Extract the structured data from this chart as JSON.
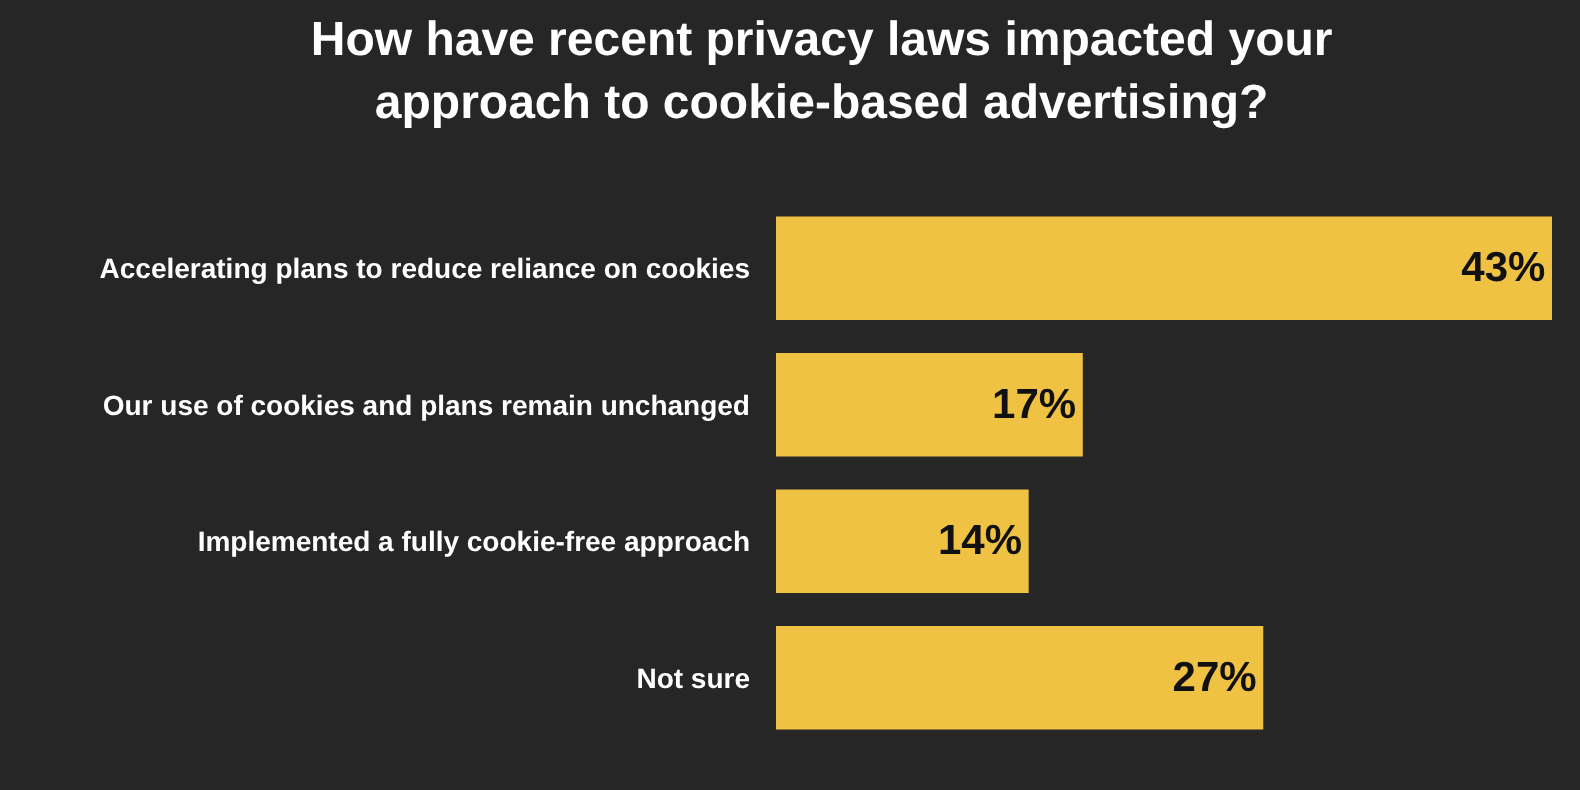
{
  "chart_data": {
    "type": "bar",
    "orientation": "horizontal",
    "title": "How have recent privacy laws impacted your approach to cookie-based advertising?",
    "categories": [
      "Accelerating plans to reduce reliance on cookies",
      "Our use of cookies and plans remain unchanged",
      "Implemented a fully cookie-free approach",
      "Not sure"
    ],
    "values": [
      43,
      17,
      14,
      27
    ],
    "value_labels": [
      "43%",
      "17%",
      "14%",
      "27%"
    ],
    "color": "#f0c244"
  }
}
